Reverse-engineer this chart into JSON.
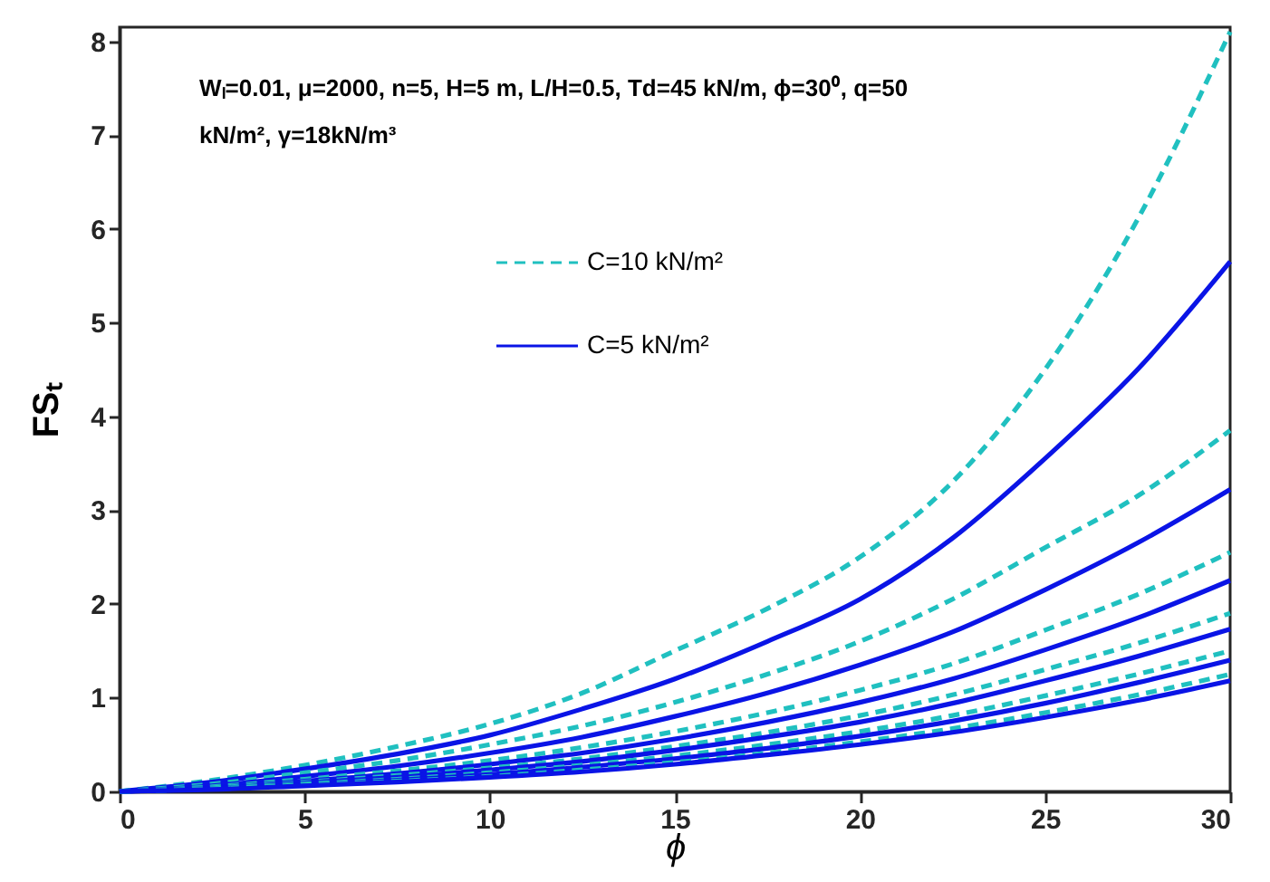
{
  "chart_data": {
    "type": "line",
    "xlabel": "ϕ",
    "ylabel": "FSₜ",
    "annotations": [
      "Wₗ=0.01, μ=2000, n=5, H=5 m, L/H=0.5, Td=45 kN/m, ϕ=30⁰, q=50\nkN/m², γ=18kN/m³"
    ],
    "x": [
      0,
      2.5,
      5,
      7.5,
      10,
      12.5,
      15,
      17.5,
      20,
      22.5,
      25,
      27.5,
      30
    ],
    "xlim": [
      0,
      30
    ],
    "xticks": [
      0,
      5,
      10,
      15,
      20,
      25,
      30
    ],
    "ylim": [
      0,
      8.15
    ],
    "yticks": [
      0,
      1,
      2,
      3,
      4,
      5,
      6,
      7,
      8
    ],
    "grid": false,
    "legend": "top left",
    "marker": "none",
    "series": [
      {
        "name": "C=10 kN/m²",
        "color": "#20c0c0",
        "line_style": "dashed",
        "values": [
          0,
          0.12,
          0.28,
          0.48,
          0.72,
          1.05,
          1.5,
          1.95,
          2.5,
          3.3,
          4.5,
          6.1,
          8.1
        ]
      },
      {
        "name": "C=5 kN/m²",
        "color": "#0a14e6",
        "line_style": "solid",
        "values": [
          0,
          0.1,
          0.24,
          0.4,
          0.6,
          0.88,
          1.2,
          1.6,
          2.05,
          2.7,
          3.55,
          4.5,
          5.65
        ]
      },
      {
        "color": "#20c0c0",
        "line_style": "dashed",
        "values": [
          0,
          0.08,
          0.2,
          0.33,
          0.5,
          0.7,
          0.95,
          1.25,
          1.6,
          2.05,
          2.6,
          3.15,
          3.85
        ]
      },
      {
        "color": "#0a14e6",
        "line_style": "solid",
        "values": [
          0,
          0.06,
          0.16,
          0.27,
          0.41,
          0.58,
          0.8,
          1.05,
          1.35,
          1.7,
          2.15,
          2.65,
          3.22
        ]
      },
      {
        "color": "#20c0c0",
        "line_style": "dashed",
        "values": [
          0,
          0.05,
          0.13,
          0.22,
          0.33,
          0.47,
          0.64,
          0.84,
          1.08,
          1.36,
          1.72,
          2.1,
          2.55
        ]
      },
      {
        "color": "#0a14e6",
        "line_style": "solid",
        "values": [
          0,
          0.04,
          0.11,
          0.19,
          0.29,
          0.41,
          0.56,
          0.74,
          0.95,
          1.2,
          1.51,
          1.85,
          2.25
        ]
      },
      {
        "color": "#20c0c0",
        "line_style": "dashed",
        "values": [
          0,
          0.04,
          0.1,
          0.17,
          0.25,
          0.35,
          0.48,
          0.63,
          0.81,
          1.03,
          1.3,
          1.58,
          1.9
        ]
      },
      {
        "color": "#0a14e6",
        "line_style": "solid",
        "values": [
          0,
          0.03,
          0.09,
          0.15,
          0.23,
          0.32,
          0.44,
          0.58,
          0.74,
          0.94,
          1.18,
          1.44,
          1.73
        ]
      },
      {
        "color": "#20c0c0",
        "line_style": "dashed",
        "values": [
          0,
          0.03,
          0.08,
          0.13,
          0.2,
          0.28,
          0.38,
          0.5,
          0.64,
          0.81,
          1.02,
          1.25,
          1.5
        ]
      },
      {
        "color": "#0a14e6",
        "line_style": "solid",
        "values": [
          0,
          0.03,
          0.07,
          0.12,
          0.18,
          0.26,
          0.35,
          0.46,
          0.59,
          0.75,
          0.94,
          1.16,
          1.4
        ]
      },
      {
        "color": "#20c0c0",
        "line_style": "dashed",
        "values": [
          0,
          0.03,
          0.07,
          0.11,
          0.16,
          0.23,
          0.31,
          0.41,
          0.53,
          0.67,
          0.84,
          1.03,
          1.25
        ]
      },
      {
        "color": "#0a14e6",
        "line_style": "solid",
        "values": [
          0,
          0.02,
          0.06,
          0.1,
          0.15,
          0.21,
          0.29,
          0.39,
          0.5,
          0.63,
          0.79,
          0.97,
          1.18
        ]
      }
    ]
  }
}
